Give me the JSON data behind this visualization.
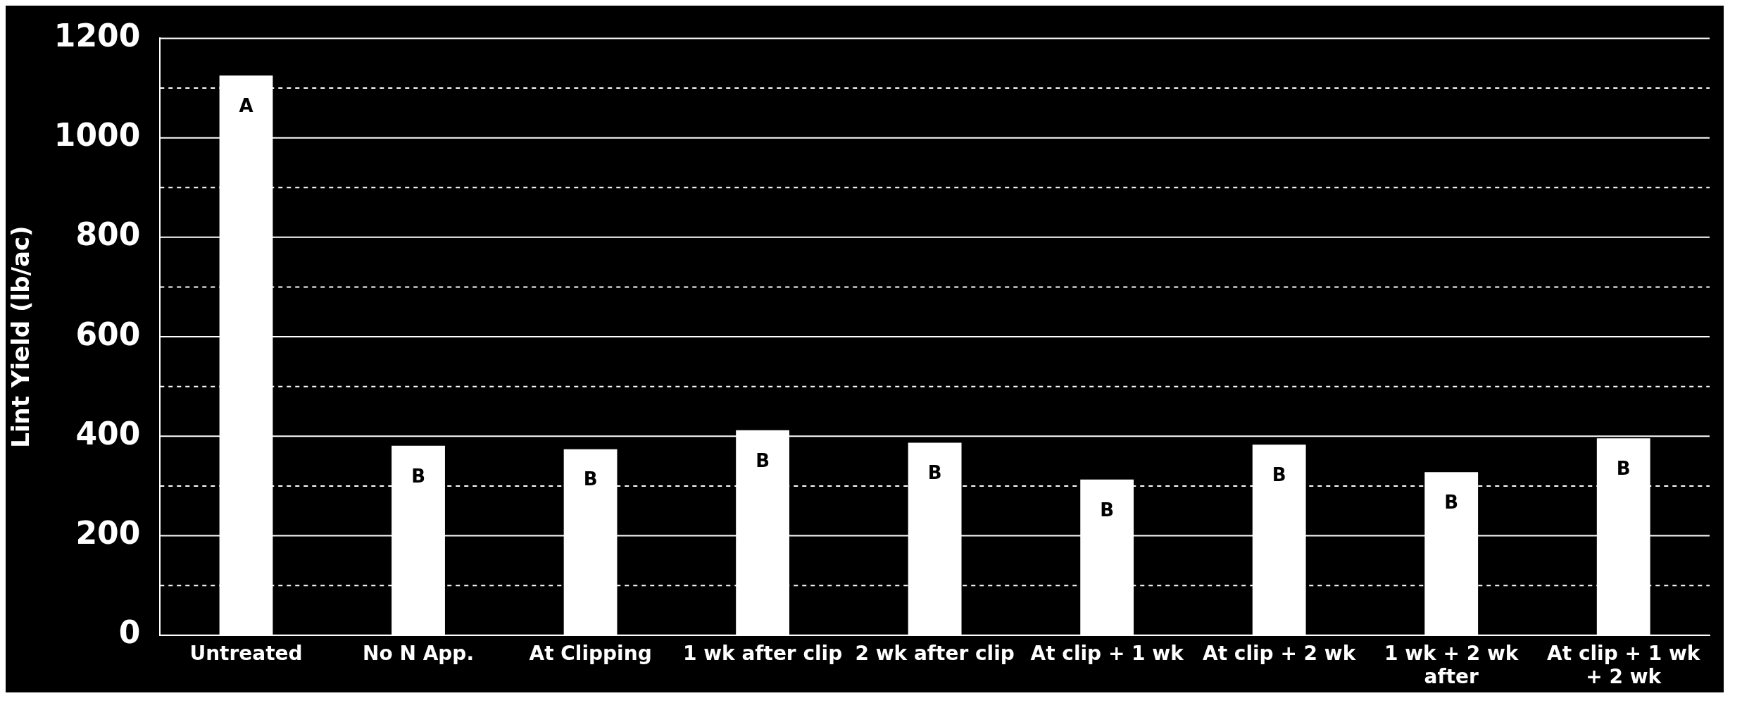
{
  "chart_data": {
    "type": "bar",
    "ylabel": "Lint Yield (lb/ac)",
    "categories": [
      "Untreated",
      "No N App.",
      "At Clipping",
      "1 wk after clip",
      "2 wk after clip",
      "At clip + 1 wk",
      "At clip + 2 wk",
      "1 wk + 2 wk after",
      "At clip + 1 wk + 2 wk"
    ],
    "values": [
      1125,
      381,
      374,
      412,
      387,
      313,
      383,
      328,
      396
    ],
    "color": "#ffffff",
    "ylim": [
      0,
      1200
    ],
    "yticks": [
      0,
      {
        "value": 100,
        "label": null
      },
      200,
      {
        "value": 300,
        "label": null
      },
      400,
      {
        "value": 500,
        "label": null
      },
      600,
      {
        "value": 700,
        "label": null
      },
      800,
      {
        "value": 900,
        "label": null
      },
      1000,
      {
        "value": 1100,
        "label": null
      },
      1200
    ],
    "grid": "y",
    "annotations": [
      "A",
      "B",
      "B",
      "B",
      "B",
      "B",
      "B",
      "B",
      "B"
    ]
  }
}
